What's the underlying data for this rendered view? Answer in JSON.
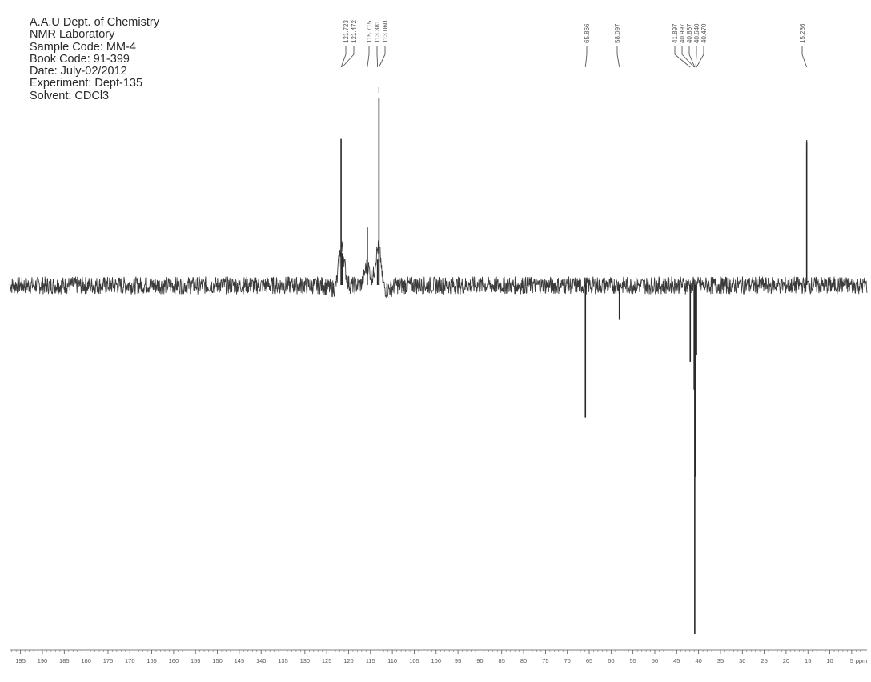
{
  "header": {
    "lines": [
      "A.A.U Dept. of Chemistry",
      "NMR Laboratory",
      "Sample Code: MM-4",
      "Book Code: 91-399",
      "Date: July-02/2012",
      "Experiment: Dept-135",
      "Solvent: CDCl3"
    ]
  },
  "chart_data": {
    "type": "line",
    "title": "",
    "xlabel": "",
    "ylabel": "",
    "x_unit": "ppm",
    "xlim": [
      197.5,
      1.5
    ],
    "x_reversed": true,
    "ylim": [
      -1.0,
      0.57
    ],
    "grid": false,
    "ticks": [
      195,
      190,
      185,
      180,
      175,
      170,
      165,
      160,
      155,
      150,
      145,
      140,
      135,
      130,
      125,
      120,
      115,
      110,
      105,
      100,
      95,
      90,
      85,
      80,
      75,
      70,
      65,
      60,
      55,
      50,
      45,
      40,
      35,
      30,
      25,
      20,
      15,
      10,
      5
    ],
    "peak_labels": [
      "121.723",
      "121.472",
      "115.715",
      "113.381",
      "113.060",
      "65.866",
      "58.097",
      "41.897",
      "40.997",
      "40.867",
      "40.640",
      "40.470",
      "15.286"
    ],
    "peaks": [
      {
        "x": 121.72,
        "y": 0.46
      },
      {
        "x": 121.47,
        "y": 0.1
      },
      {
        "x": 115.72,
        "y": 0.18
      },
      {
        "x": 113.38,
        "y": 0.08
      },
      {
        "x": 113.06,
        "y": 0.59
      },
      {
        "x": 65.87,
        "y": -0.38
      },
      {
        "x": 58.1,
        "y": -0.1
      },
      {
        "x": 41.9,
        "y": -0.22
      },
      {
        "x": 41.0,
        "y": -0.3
      },
      {
        "x": 40.87,
        "y": -1.0
      },
      {
        "x": 40.64,
        "y": -0.55
      },
      {
        "x": 40.47,
        "y": -0.2
      },
      {
        "x": 15.29,
        "y": 0.45
      }
    ]
  }
}
